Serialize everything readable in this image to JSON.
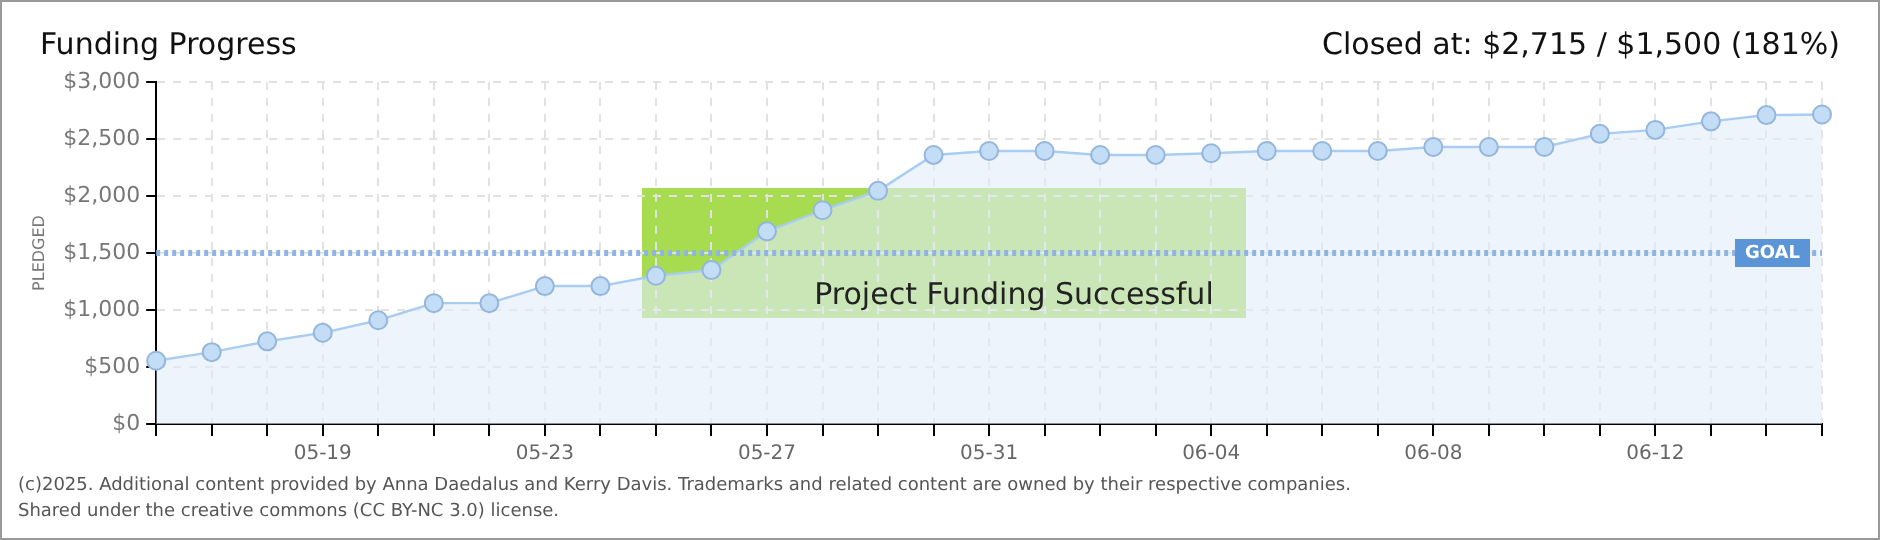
{
  "chart_data": {
    "type": "area",
    "title": "Funding Progress",
    "subtitle": "Closed at: $2,715 / $1,500 (181%)",
    "ylabel": "PLEDGED",
    "categories": [
      null,
      null,
      null,
      "05-19",
      null,
      null,
      null,
      "05-23",
      null,
      null,
      null,
      "05-27",
      null,
      null,
      null,
      "05-31",
      null,
      null,
      null,
      "06-04",
      null,
      null,
      null,
      "06-08",
      null,
      null,
      null,
      "06-12",
      null,
      null,
      null
    ],
    "series": [
      {
        "color": "#a9cdf2",
        "values": [
          555,
          630,
          725,
          800,
          910,
          1060,
          1060,
          1210,
          1210,
          1300,
          1350,
          1690,
          1875,
          2045,
          2360,
          2395,
          2395,
          2360,
          2360,
          2375,
          2395,
          2395,
          2395,
          2430,
          2430,
          2430,
          2545,
          2580,
          2655,
          2710,
          2715
        ]
      }
    ],
    "ylim": [
      0,
      3000
    ],
    "yticks": [
      {
        "value": 0,
        "label": "$0"
      },
      {
        "value": 500,
        "label": "$500"
      },
      {
        "value": 1000,
        "label": "$1,000"
      },
      {
        "value": 1500,
        "label": "$1,500"
      },
      {
        "value": 2000,
        "label": "$2,000"
      },
      {
        "value": 2500,
        "label": "$2,500"
      },
      {
        "value": 3000,
        "label": "$3,000"
      }
    ],
    "ref_lines": [
      {
        "axis": "y",
        "value": 1500,
        "label": "GOAL",
        "color": "#8db4e2",
        "line_style": "dotted"
      }
    ],
    "annotations": [
      "Project Funding Successful",
      "(c)2025. Additional content provided by Anna Daedalus and Kerry Davis. Trademarks and related content are owned by their respective companies.",
      "Shared under the creative commons (CC BY-NC 3.0) license."
    ],
    "grid": true,
    "marker": "circle",
    "legend": false
  }
}
